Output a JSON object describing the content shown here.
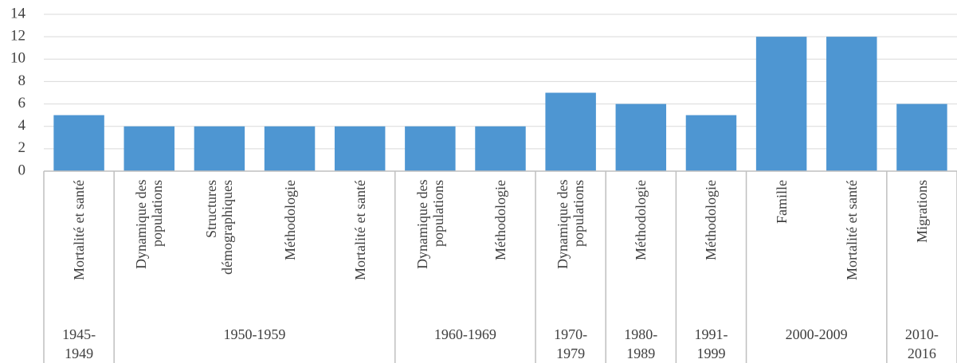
{
  "chart_data": {
    "type": "bar",
    "categories": [
      "Mortalité et santé",
      "Dynamique des populations",
      "Structures démographiques",
      "Méthodologie",
      "Mortalité et santé",
      "Dynamique des populations",
      "Méthodologie",
      "Dynamique des populations",
      "Méthodologie",
      "Méthodologie",
      "Famille",
      "Mortalité et santé",
      "Migrations"
    ],
    "values": [
      5,
      4,
      4,
      4,
      4,
      4,
      4,
      7,
      6,
      5,
      12,
      12,
      6
    ],
    "groups": [
      {
        "label": "1945-1949",
        "count": 1
      },
      {
        "label": "1950-1959",
        "count": 4
      },
      {
        "label": "1960-1969",
        "count": 2
      },
      {
        "label": "1970-1979",
        "count": 1
      },
      {
        "label": "1980-1989",
        "count": 1
      },
      {
        "label": "1991-1999",
        "count": 1
      },
      {
        "label": "2000-2009",
        "count": 2
      },
      {
        "label": "2010-2016",
        "count": 1
      }
    ],
    "color": "#4e96d2",
    "ylim": [
      0,
      14
    ],
    "yticks": [
      0,
      2,
      4,
      6,
      8,
      10,
      12,
      14
    ],
    "grid": true
  }
}
